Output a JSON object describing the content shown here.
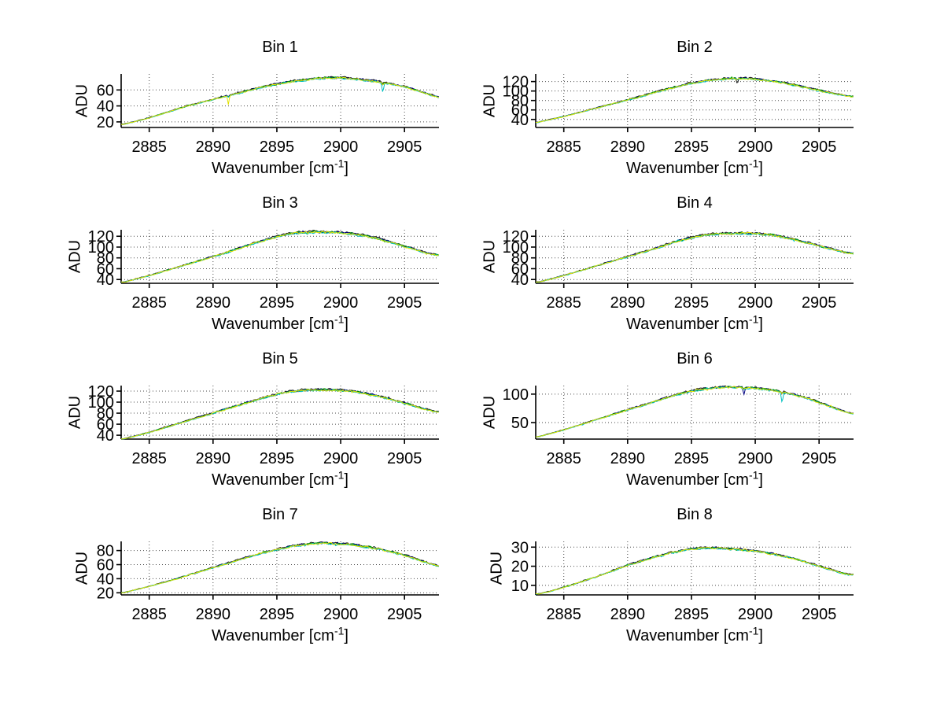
{
  "figure": {
    "background": "#ffffff"
  },
  "colors": {
    "axis": "#000000",
    "grid": "#4a4a4a",
    "text": "#000000",
    "black": "#1a1a1a",
    "navy": "#000080",
    "green": "#00a000",
    "cyan": "#00bfbf",
    "yellow": "#e2e200"
  },
  "chart_data": [
    {
      "type": "line",
      "title": "Bin 1",
      "ylabel": "ADU",
      "xlabel_main": "Wavenumber [cm",
      "xlabel_sup": "-1",
      "xlabel_close": "]",
      "xlim": [
        2882.8,
        2907.7
      ],
      "ylim": [
        13,
        80
      ],
      "xticks": [
        2885,
        2890,
        2895,
        2900,
        2905
      ],
      "yticks": [
        20,
        40,
        60
      ],
      "grid": true,
      "n_overlaid_traces": 5,
      "traces": [
        "black",
        "navy",
        "green",
        "cyan",
        "yellow"
      ],
      "anchors": {
        "x": [
          2883,
          2884,
          2885,
          2886,
          2887,
          2888,
          2889,
          2890,
          2891,
          2892,
          2893,
          2894,
          2895,
          2896,
          2897,
          2898,
          2899,
          2900,
          2901,
          2902,
          2903,
          2904,
          2905,
          2906,
          2907,
          2907.6
        ],
        "y": [
          17,
          21,
          25,
          30,
          35,
          40,
          44,
          48,
          52,
          56,
          60,
          64,
          67,
          70,
          72,
          74,
          75,
          75,
          74,
          72,
          70,
          67,
          64,
          59,
          54,
          51
        ]
      },
      "spikes": [
        {
          "x": 2891.2,
          "depth": 11,
          "trace": "yellow"
        },
        {
          "x": 2903.3,
          "depth": 14,
          "trace": "cyan"
        }
      ]
    },
    {
      "type": "line",
      "title": "Bin 2",
      "ylabel": "ADU",
      "xlabel_main": "Wavenumber [cm",
      "xlabel_sup": "-1",
      "xlabel_close": "]",
      "xlim": [
        2882.8,
        2907.7
      ],
      "ylim": [
        23,
        136
      ],
      "xticks": [
        2885,
        2890,
        2895,
        2900,
        2905
      ],
      "yticks": [
        40,
        60,
        80,
        100,
        120
      ],
      "grid": true,
      "n_overlaid_traces": 5,
      "traces": [
        "black",
        "navy",
        "green",
        "cyan",
        "yellow"
      ],
      "anchors": {
        "x": [
          2883,
          2884,
          2885,
          2886,
          2887,
          2888,
          2889,
          2890,
          2891,
          2892,
          2893,
          2894,
          2895,
          2896,
          2897,
          2898,
          2899,
          2900,
          2901,
          2902,
          2903,
          2904,
          2905,
          2906,
          2907,
          2907.6
        ],
        "y": [
          34,
          40,
          46,
          53,
          60,
          67,
          74,
          81,
          88,
          96,
          103,
          110,
          116,
          121,
          124,
          126,
          126,
          125,
          122,
          118,
          113,
          107,
          101,
          95,
          90,
          88
        ]
      },
      "spikes": [
        {
          "x": 2898.6,
          "depth": 14,
          "trace": "black"
        }
      ]
    },
    {
      "type": "line",
      "title": "Bin 3",
      "ylabel": "ADU",
      "xlabel_main": "Wavenumber [cm",
      "xlabel_sup": "-1",
      "xlabel_close": "]",
      "xlim": [
        2882.8,
        2907.7
      ],
      "ylim": [
        33,
        132
      ],
      "xticks": [
        2885,
        2890,
        2895,
        2900,
        2905
      ],
      "yticks": [
        40,
        60,
        80,
        100,
        120
      ],
      "grid": true,
      "n_overlaid_traces": 5,
      "traces": [
        "black",
        "navy",
        "green",
        "cyan",
        "yellow"
      ],
      "anchors": {
        "x": [
          2883,
          2884,
          2885,
          2886,
          2887,
          2888,
          2889,
          2890,
          2891,
          2892,
          2893,
          2894,
          2895,
          2896,
          2897,
          2898,
          2899,
          2900,
          2901,
          2902,
          2903,
          2904,
          2905,
          2906,
          2907,
          2907.6
        ],
        "y": [
          35,
          41,
          47,
          54,
          61,
          68,
          75,
          82,
          89,
          97,
          105,
          112,
          119,
          124,
          127,
          128,
          127,
          126,
          124,
          120,
          115,
          108,
          101,
          94,
          87,
          85
        ]
      },
      "spikes": []
    },
    {
      "type": "line",
      "title": "Bin 4",
      "ylabel": "ADU",
      "xlabel_main": "Wavenumber [cm",
      "xlabel_sup": "-1",
      "xlabel_close": "]",
      "xlim": [
        2882.8,
        2907.7
      ],
      "ylim": [
        33,
        132
      ],
      "xticks": [
        2885,
        2890,
        2895,
        2900,
        2905
      ],
      "yticks": [
        40,
        60,
        80,
        100,
        120
      ],
      "grid": true,
      "n_overlaid_traces": 5,
      "traces": [
        "black",
        "navy",
        "green",
        "cyan",
        "yellow"
      ],
      "anchors": {
        "x": [
          2883,
          2884,
          2885,
          2886,
          2887,
          2888,
          2889,
          2890,
          2891,
          2892,
          2893,
          2894,
          2895,
          2896,
          2897,
          2898,
          2899,
          2900,
          2901,
          2902,
          2903,
          2904,
          2905,
          2906,
          2907,
          2907.6
        ],
        "y": [
          35,
          41,
          47,
          54,
          61,
          68,
          75,
          82,
          89,
          96,
          104,
          111,
          117,
          122,
          124,
          125,
          125,
          125,
          123,
          119,
          114,
          108,
          102,
          96,
          90,
          88
        ]
      },
      "spikes": []
    },
    {
      "type": "line",
      "title": "Bin 5",
      "ylabel": "ADU",
      "xlabel_main": "Wavenumber [cm",
      "xlabel_sup": "-1",
      "xlabel_close": "]",
      "xlim": [
        2882.8,
        2907.7
      ],
      "ylim": [
        33,
        130
      ],
      "xticks": [
        2885,
        2890,
        2895,
        2900,
        2905
      ],
      "yticks": [
        40,
        60,
        80,
        100,
        120
      ],
      "grid": true,
      "n_overlaid_traces": 5,
      "traces": [
        "black",
        "navy",
        "green",
        "cyan",
        "yellow"
      ],
      "anchors": {
        "x": [
          2883,
          2884,
          2885,
          2886,
          2887,
          2888,
          2889,
          2890,
          2891,
          2892,
          2893,
          2894,
          2895,
          2896,
          2897,
          2898,
          2899,
          2900,
          2901,
          2902,
          2903,
          2904,
          2905,
          2906,
          2907,
          2907.6
        ],
        "y": [
          33,
          39,
          45,
          52,
          59,
          66,
          73,
          80,
          87,
          94,
          101,
          108,
          114,
          118,
          121,
          122,
          122,
          121,
          119,
          115,
          110,
          104,
          98,
          91,
          85,
          82
        ]
      },
      "spikes": []
    },
    {
      "type": "line",
      "title": "Bin 6",
      "ylabel": "ADU",
      "xlabel_main": "Wavenumber [cm",
      "xlabel_sup": "-1",
      "xlabel_close": "]",
      "xlim": [
        2882.8,
        2907.7
      ],
      "ylim": [
        21,
        115
      ],
      "xticks": [
        2885,
        2890,
        2895,
        2900,
        2905
      ],
      "yticks": [
        50,
        100
      ],
      "grid": true,
      "n_overlaid_traces": 5,
      "traces": [
        "black",
        "navy",
        "green",
        "cyan",
        "yellow"
      ],
      "anchors": {
        "x": [
          2883,
          2884,
          2885,
          2886,
          2887,
          2888,
          2889,
          2890,
          2891,
          2892,
          2893,
          2894,
          2895,
          2896,
          2897,
          2898,
          2899,
          2900,
          2901,
          2902,
          2903,
          2904,
          2905,
          2906,
          2907,
          2907.6
        ],
        "y": [
          25,
          31,
          37,
          44,
          51,
          58,
          65,
          72,
          79,
          86,
          93,
          100,
          105,
          109,
          111,
          112,
          111,
          110,
          108,
          104,
          99,
          93,
          85,
          77,
          69,
          66
        ]
      },
      "spikes": [
        {
          "x": 2899.1,
          "depth": 13,
          "trace": "navy"
        },
        {
          "x": 2902.1,
          "depth": 20,
          "trace": "cyan"
        }
      ]
    },
    {
      "type": "line",
      "title": "Bin 7",
      "ylabel": "ADU",
      "xlabel_main": "Wavenumber [cm",
      "xlabel_sup": "-1",
      "xlabel_close": "]",
      "xlim": [
        2882.8,
        2907.7
      ],
      "ylim": [
        17,
        93
      ],
      "xticks": [
        2885,
        2890,
        2895,
        2900,
        2905
      ],
      "yticks": [
        20,
        40,
        60,
        80
      ],
      "grid": true,
      "n_overlaid_traces": 5,
      "traces": [
        "black",
        "navy",
        "green",
        "cyan",
        "yellow"
      ],
      "anchors": {
        "x": [
          2883,
          2884,
          2885,
          2886,
          2887,
          2888,
          2889,
          2890,
          2891,
          2892,
          2893,
          2894,
          2895,
          2896,
          2897,
          2898,
          2899,
          2900,
          2901,
          2902,
          2903,
          2904,
          2905,
          2906,
          2907,
          2907.6
        ],
        "y": [
          20,
          24.5,
          29,
          34,
          39,
          44.5,
          50,
          55.5,
          61,
          66.5,
          72,
          77,
          81,
          85,
          88,
          90,
          90,
          89,
          88,
          85,
          82,
          78,
          73,
          67,
          61,
          58
        ]
      },
      "spikes": []
    },
    {
      "type": "line",
      "title": "Bin 8",
      "ylabel": "ADU",
      "xlabel_main": "Wavenumber [cm",
      "xlabel_sup": "-1",
      "xlabel_close": "]",
      "xlim": [
        2882.8,
        2907.7
      ],
      "ylim": [
        5,
        33
      ],
      "xticks": [
        2885,
        2890,
        2895,
        2900,
        2905
      ],
      "yticks": [
        10,
        20,
        30
      ],
      "grid": true,
      "n_overlaid_traces": 5,
      "traces": [
        "black",
        "navy",
        "green",
        "cyan",
        "yellow"
      ],
      "anchors": {
        "x": [
          2883,
          2884,
          2885,
          2886,
          2887,
          2888,
          2889,
          2890,
          2891,
          2892,
          2893,
          2894,
          2895,
          2896,
          2897,
          2898,
          2899,
          2900,
          2901,
          2902,
          2903,
          2904,
          2905,
          2906,
          2907,
          2907.6
        ],
        "y": [
          5.5,
          7,
          9,
          11,
          13.2,
          15.5,
          18,
          20.5,
          22.5,
          24.5,
          26.3,
          27.8,
          29,
          29.5,
          29.5,
          29,
          28.5,
          27.8,
          26.8,
          25.5,
          24,
          22,
          20,
          18,
          16,
          15.5
        ]
      },
      "spikes": []
    }
  ]
}
